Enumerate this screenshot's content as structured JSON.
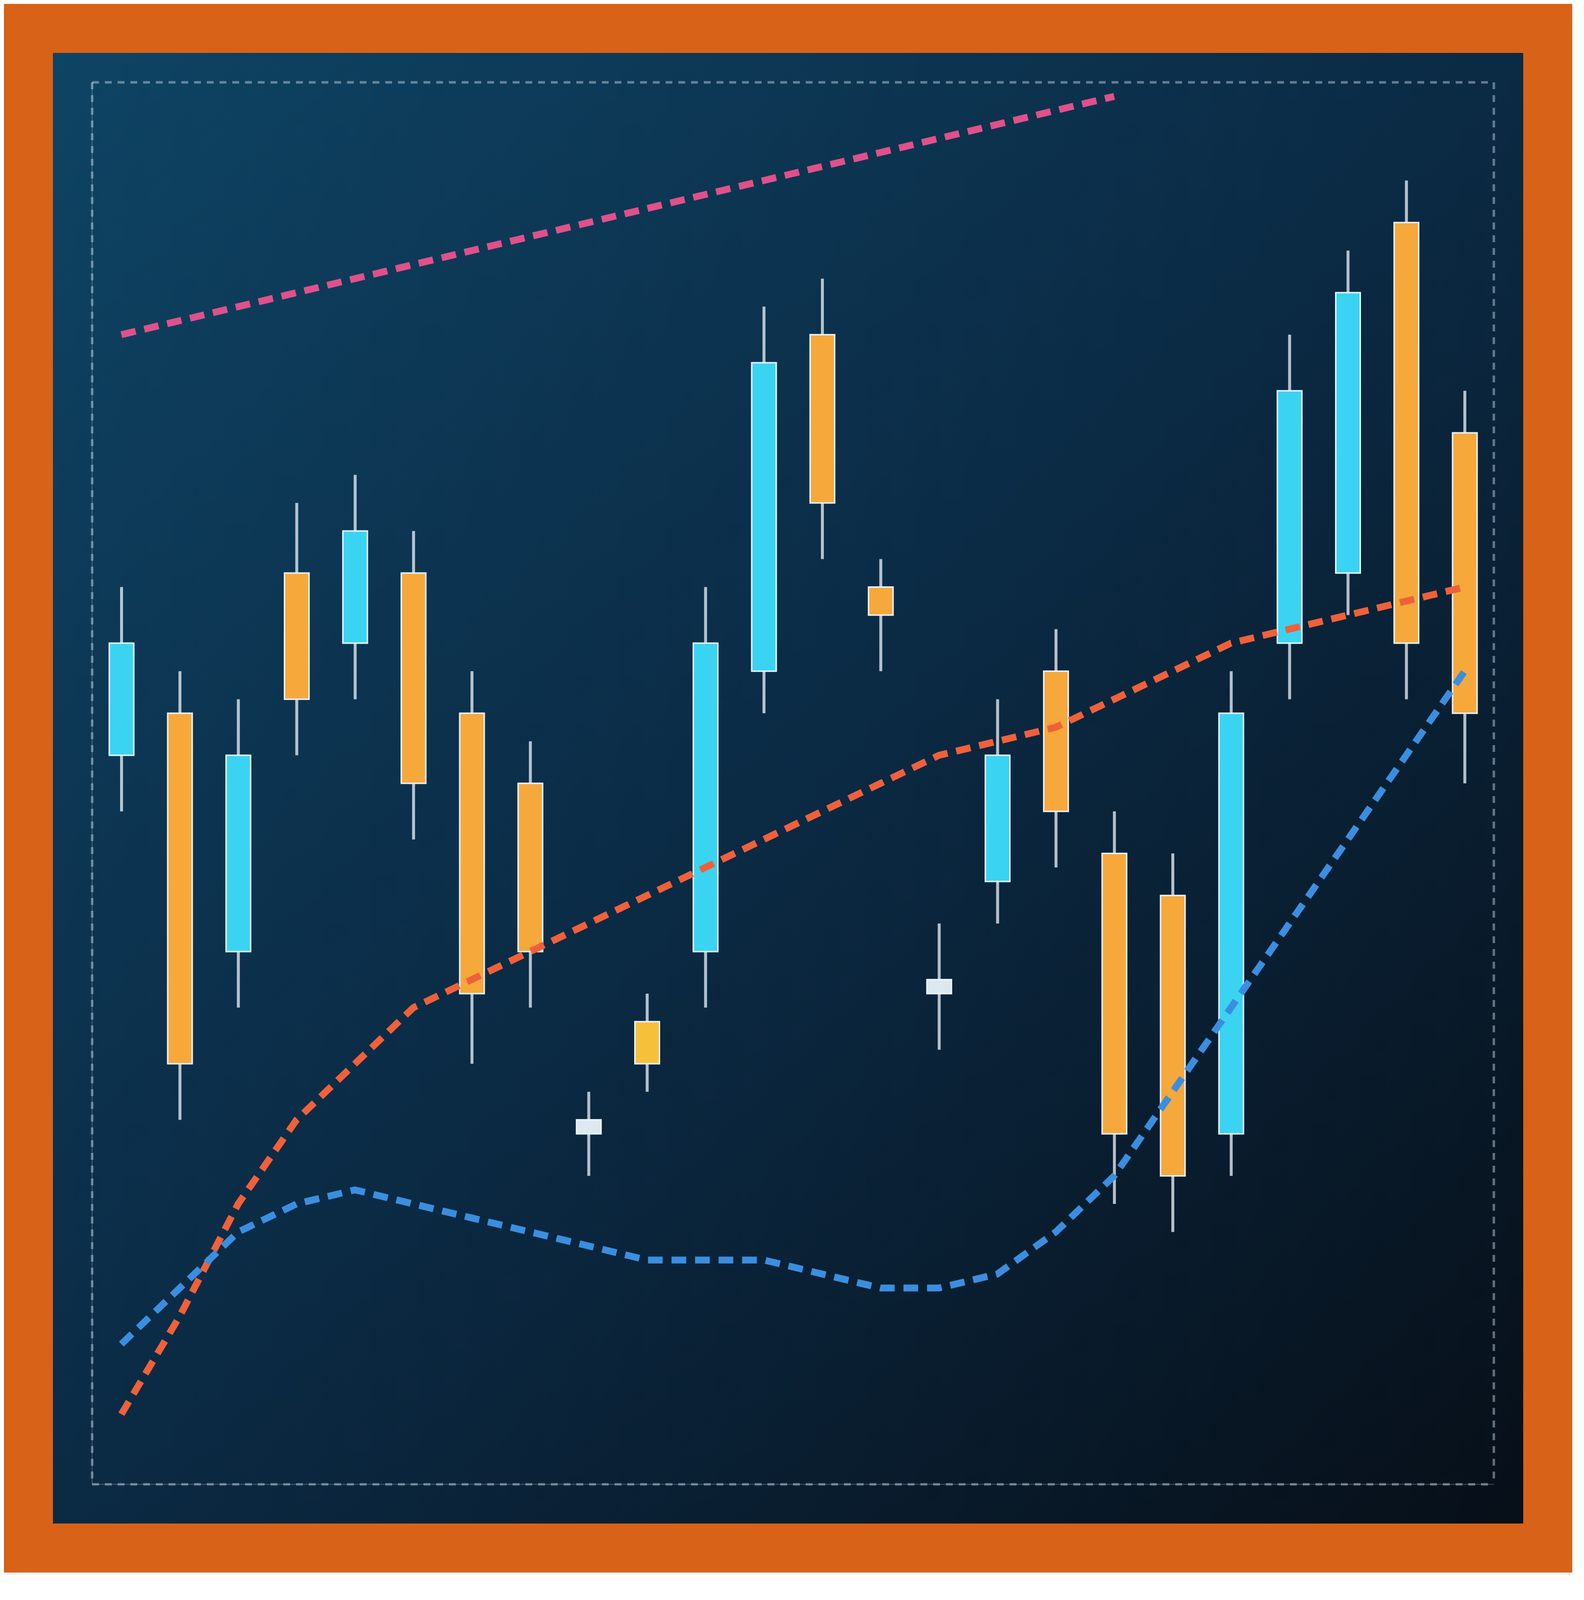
{
  "chart_data": {
    "type": "candlestick",
    "categories": [
      null,
      null,
      null,
      null,
      null,
      null,
      null,
      null,
      null,
      null,
      null,
      null,
      null,
      null,
      null,
      null,
      null,
      null,
      null,
      null,
      null,
      null,
      null,
      null
    ],
    "open": [
      52,
      55,
      38,
      56,
      60,
      65,
      55,
      50,
      25,
      30,
      38,
      58,
      70,
      64,
      35,
      43,
      58,
      45,
      42,
      25,
      60,
      65,
      90,
      75
    ],
    "close": [
      60,
      30,
      52,
      65,
      68,
      50,
      35,
      38,
      26,
      33,
      60,
      80,
      82,
      62,
      36,
      52,
      48,
      25,
      22,
      55,
      78,
      85,
      60,
      55
    ],
    "high": [
      64,
      58,
      56,
      70,
      72,
      68,
      58,
      53,
      28,
      35,
      64,
      84,
      86,
      66,
      40,
      56,
      61,
      48,
      45,
      58,
      82,
      88,
      93,
      78
    ],
    "low": [
      48,
      26,
      34,
      52,
      56,
      46,
      30,
      34,
      22,
      28,
      34,
      55,
      66,
      58,
      31,
      40,
      44,
      20,
      18,
      22,
      56,
      62,
      56,
      50
    ],
    "colors": [
      "#3ad4f2",
      "#f6a83a",
      "#3ad4f2",
      "#f6a83a",
      "#3ad4f2",
      "#f6a83a",
      "#f6a83a",
      "#f6a83a",
      "#dde8f0",
      "#f6c03a",
      "#3ad4f2",
      "#3ad4f2",
      "#f6a83a",
      "#f6a83a",
      "#dde8f0",
      "#3ad4f2",
      "#f6a83a",
      "#f6a83a",
      "#f6a83a",
      "#3ad4f2",
      "#3ad4f2",
      "#3ad4f2",
      "#f6a83a",
      "#f6a83a"
    ],
    "series": [
      {
        "color": "#f0603a",
        "line_style": "dashed",
        "values": [
          5,
          12,
          20,
          26,
          30,
          34,
          36,
          38,
          40,
          42,
          44,
          46,
          48,
          50,
          52,
          53,
          54,
          56,
          58,
          60,
          61,
          62,
          63,
          64
        ]
      },
      {
        "color": "#3a8ee0",
        "line_style": "dashed",
        "values": [
          10,
          14,
          18,
          20,
          21,
          20,
          19,
          18,
          17,
          16,
          16,
          16,
          15,
          14,
          14,
          15,
          18,
          22,
          28,
          34,
          40,
          46,
          52,
          58
        ]
      },
      {
        "color": "#e0508a",
        "line_style": "dashed",
        "values": [
          82,
          83,
          84,
          85,
          86,
          87,
          88,
          89,
          90,
          91,
          92,
          93,
          94,
          95,
          96,
          97,
          98,
          99,
          null,
          null,
          null,
          null,
          null,
          null
        ]
      }
    ],
    "ylim": [
      0,
      100
    ],
    "yticks": [
      0,
      20,
      40,
      60,
      80,
      100
    ],
    "grid": true,
    "tick_labels": false
  }
}
